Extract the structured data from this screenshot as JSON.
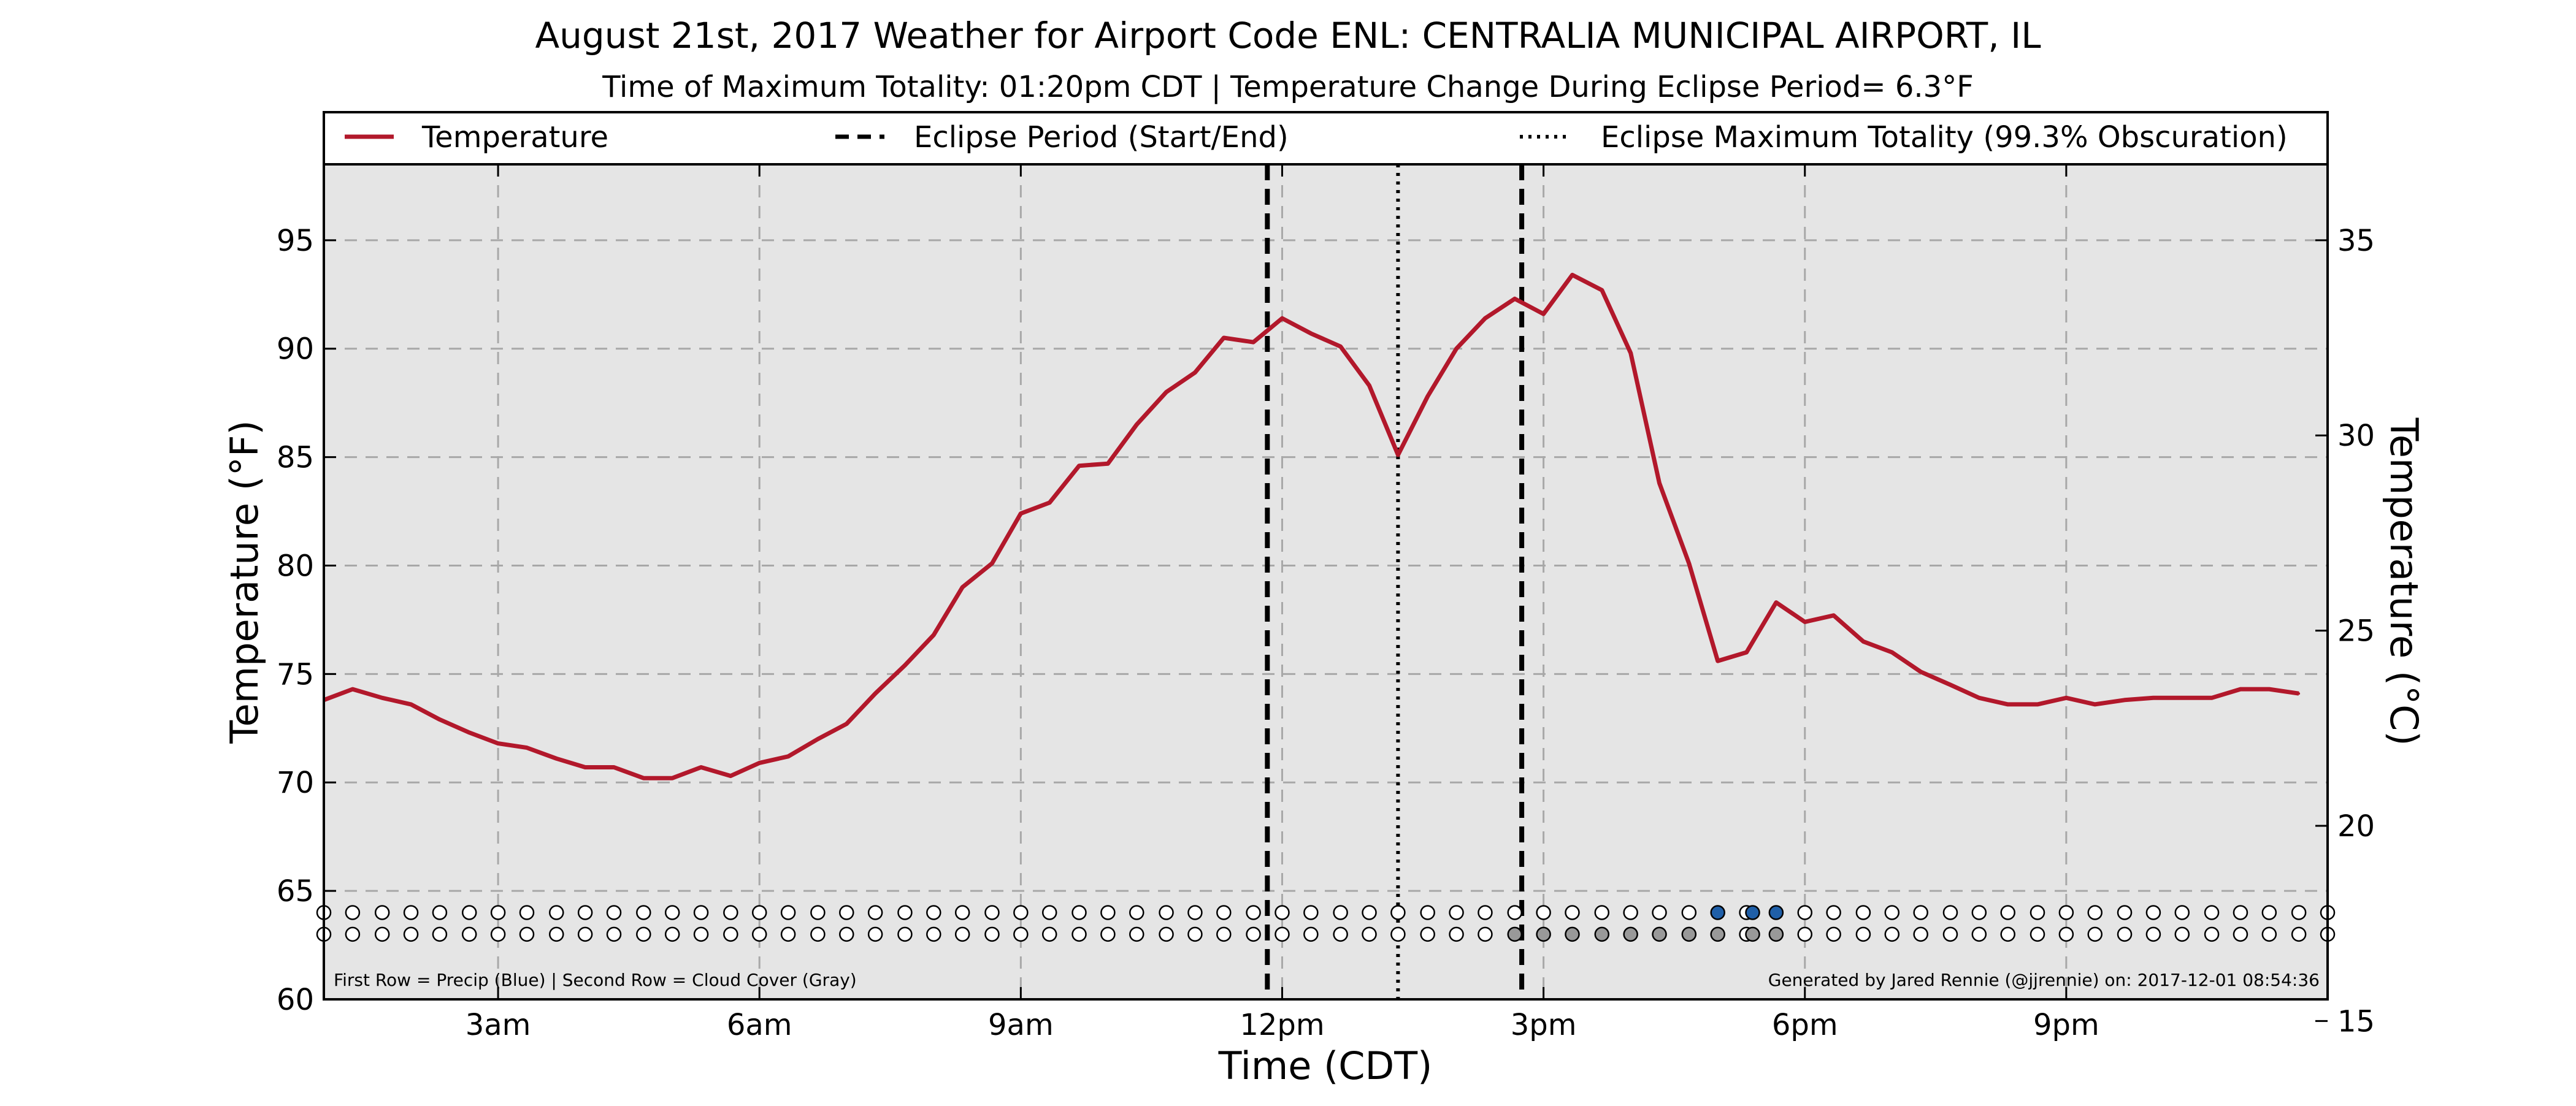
{
  "chart_data": {
    "type": "line",
    "title": "August 21st, 2017 Weather for Airport Code ENL: CENTRALIA MUNICIPAL AIRPORT, IL",
    "subtitle": "Time of Maximum Totality: 01:20pm CDT | Temperature Change During Eclipse Period= 6.3°F",
    "xlabel": "Time (CDT)",
    "ylabel": "Temperature (°F)",
    "ylabel_right": "Temperature (°C)",
    "xlim_hours": [
      1.0,
      24.0
    ],
    "ylim": [
      60,
      98.5
    ],
    "grid": true,
    "legend_placement": "top",
    "x_ticks": [
      {
        "hour": 3,
        "label": "3am"
      },
      {
        "hour": 6,
        "label": "6am"
      },
      {
        "hour": 9,
        "label": "9am"
      },
      {
        "hour": 12,
        "label": "12pm"
      },
      {
        "hour": 15,
        "label": "3pm"
      },
      {
        "hour": 18,
        "label": "6pm"
      },
      {
        "hour": 21,
        "label": "9pm"
      }
    ],
    "y_ticks": [
      60,
      65,
      70,
      75,
      80,
      85,
      90,
      95
    ],
    "y_ticks_right": [
      15,
      20,
      25,
      30,
      35
    ],
    "legend": {
      "temperature": "Temperature",
      "eclipse_period": "Eclipse Period (Start/End)",
      "max_totality": "Eclipse Maximum Totality (99.3% Obscuration)"
    },
    "series": [
      {
        "name": "Temperature",
        "color": "#b2182b",
        "points": [
          [
            1.0,
            73.8
          ],
          [
            1.33,
            74.3
          ],
          [
            1.67,
            73.9
          ],
          [
            2.0,
            73.6
          ],
          [
            2.33,
            72.9
          ],
          [
            2.67,
            72.3
          ],
          [
            3.0,
            71.8
          ],
          [
            3.33,
            71.6
          ],
          [
            3.67,
            71.1
          ],
          [
            4.0,
            70.7
          ],
          [
            4.33,
            70.7
          ],
          [
            4.67,
            70.2
          ],
          [
            5.0,
            70.2
          ],
          [
            5.33,
            70.7
          ],
          [
            5.67,
            70.3
          ],
          [
            6.0,
            70.9
          ],
          [
            6.33,
            71.2
          ],
          [
            6.67,
            72.0
          ],
          [
            7.0,
            72.7
          ],
          [
            7.33,
            74.1
          ],
          [
            7.67,
            75.4
          ],
          [
            8.0,
            76.8
          ],
          [
            8.33,
            79.0
          ],
          [
            8.67,
            80.1
          ],
          [
            9.0,
            82.4
          ],
          [
            9.33,
            82.9
          ],
          [
            9.67,
            84.6
          ],
          [
            10.0,
            84.7
          ],
          [
            10.33,
            86.5
          ],
          [
            10.67,
            88.0
          ],
          [
            11.0,
            88.9
          ],
          [
            11.33,
            90.5
          ],
          [
            11.67,
            90.3
          ],
          [
            12.0,
            91.4
          ],
          [
            12.33,
            90.7
          ],
          [
            12.67,
            90.1
          ],
          [
            13.0,
            88.3
          ],
          [
            13.33,
            85.1
          ],
          [
            13.67,
            87.8
          ],
          [
            14.0,
            90.0
          ],
          [
            14.33,
            91.4
          ],
          [
            14.67,
            92.3
          ],
          [
            15.0,
            91.6
          ],
          [
            15.33,
            93.4
          ],
          [
            15.67,
            92.7
          ],
          [
            16.0,
            89.8
          ],
          [
            16.33,
            83.8
          ],
          [
            16.67,
            80.1
          ],
          [
            17.0,
            75.6
          ],
          [
            17.33,
            76.0
          ],
          [
            17.67,
            78.3
          ],
          [
            18.0,
            77.4
          ],
          [
            18.33,
            77.7
          ],
          [
            18.67,
            76.5
          ],
          [
            19.0,
            76.0
          ],
          [
            19.33,
            75.1
          ],
          [
            19.67,
            74.5
          ],
          [
            20.0,
            73.9
          ],
          [
            20.33,
            73.6
          ],
          [
            20.67,
            73.6
          ],
          [
            21.0,
            73.9
          ],
          [
            21.33,
            73.6
          ],
          [
            21.67,
            73.8
          ],
          [
            22.0,
            73.9
          ],
          [
            22.33,
            73.9
          ],
          [
            22.67,
            73.9
          ],
          [
            23.0,
            74.3
          ],
          [
            23.33,
            74.3
          ],
          [
            23.67,
            74.1
          ]
        ]
      }
    ],
    "eclipse_start_hour": 11.83,
    "eclipse_end_hour": 14.75,
    "max_totality_hour": 13.33,
    "observation_rows": {
      "precip_y": 64.0,
      "cloud_y": 63.0,
      "hours": [
        1.0,
        1.33,
        1.67,
        2.0,
        2.33,
        2.67,
        3.0,
        3.33,
        3.67,
        4.0,
        4.33,
        4.67,
        5.0,
        5.33,
        5.67,
        6.0,
        6.33,
        6.67,
        7.0,
        7.33,
        7.67,
        8.0,
        8.33,
        8.67,
        9.0,
        9.33,
        9.67,
        10.0,
        10.33,
        10.67,
        11.0,
        11.33,
        11.67,
        12.0,
        12.33,
        12.67,
        13.0,
        13.33,
        13.67,
        14.0,
        14.33,
        14.67,
        15.0,
        15.33,
        15.67,
        16.0,
        16.33,
        16.67,
        17.0,
        17.33,
        17.67,
        18.0,
        18.33,
        18.67,
        19.0,
        19.33,
        19.67,
        20.0,
        20.33,
        20.67,
        21.0,
        21.33,
        21.67,
        22.0,
        22.33,
        22.67,
        23.0,
        23.33,
        23.67,
        24.0
      ],
      "precip_hours": [
        17.0,
        17.4,
        17.67
      ],
      "cloud_hours": [
        14.67,
        15.0,
        15.33,
        15.67,
        16.0,
        16.33,
        16.67,
        17.0,
        17.4,
        17.67
      ],
      "precip_color": "#1f5fa8",
      "cloud_color": "#999999"
    },
    "footnote_left": "First Row = Precip (Blue) | Second Row = Cloud Cover (Gray)",
    "footnote_right": "Generated by Jared Rennie (@jjrennie) on: 2017-12-01 08:54:36"
  }
}
